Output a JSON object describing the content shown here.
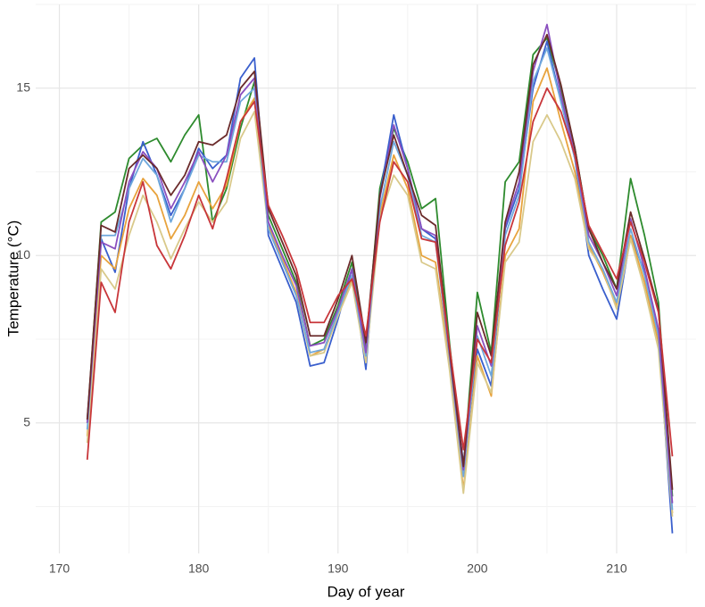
{
  "chart_data": {
    "type": "line",
    "x_label": "Day of year",
    "y_label": "Temperature (°C)",
    "x": [
      172,
      173,
      174,
      175,
      176,
      177,
      178,
      179,
      180,
      181,
      182,
      183,
      184,
      185,
      186,
      187,
      188,
      189,
      190,
      191,
      192,
      193,
      194,
      195,
      196,
      197,
      198,
      199,
      200,
      201,
      202,
      203,
      204,
      205,
      206,
      207,
      208,
      209,
      210,
      211,
      212,
      213,
      214
    ],
    "series": [
      {
        "color": "#2e8b2e",
        "values": [
          5.0,
          11.0,
          11.3,
          12.9,
          13.3,
          13.5,
          12.8,
          13.6,
          14.2,
          11.0,
          12.0,
          13.8,
          15.2,
          11.2,
          10.2,
          9.2,
          7.3,
          7.5,
          8.5,
          9.8,
          7.2,
          12.0,
          13.8,
          12.8,
          11.4,
          11.7,
          7.4,
          3.6,
          8.9,
          7.1,
          12.2,
          12.8,
          16.0,
          16.5,
          15.0,
          13.2,
          10.8,
          10.0,
          9.0,
          12.3,
          10.6,
          8.6,
          2.8
        ]
      },
      {
        "color": "#3a5fcd",
        "values": [
          5.1,
          10.5,
          9.5,
          12.0,
          13.4,
          12.4,
          11.2,
          12.0,
          13.2,
          12.6,
          13.0,
          15.3,
          15.9,
          10.6,
          9.6,
          8.6,
          6.7,
          6.8,
          8.1,
          9.6,
          6.6,
          11.8,
          14.2,
          12.6,
          10.8,
          10.5,
          7.0,
          3.8,
          7.2,
          6.1,
          10.8,
          12.0,
          15.0,
          16.4,
          14.6,
          12.9,
          10.0,
          9.0,
          8.1,
          10.6,
          9.5,
          7.6,
          1.7
        ]
      },
      {
        "color": "#e8a33d",
        "values": [
          4.6,
          10.0,
          9.6,
          11.4,
          12.3,
          11.8,
          10.5,
          11.2,
          12.2,
          11.4,
          12.1,
          14.0,
          14.7,
          10.9,
          9.9,
          8.9,
          7.0,
          7.2,
          8.3,
          9.3,
          6.9,
          11.2,
          13.0,
          12.0,
          10.0,
          9.8,
          6.8,
          3.0,
          7.0,
          5.8,
          10.0,
          10.8,
          14.6,
          15.6,
          14.0,
          12.5,
          10.3,
          9.5,
          8.5,
          10.6,
          9.2,
          7.4,
          2.3
        ]
      },
      {
        "color": "#d9c98a",
        "values": [
          4.4,
          9.6,
          9.0,
          10.6,
          11.8,
          11.0,
          9.9,
          10.8,
          11.6,
          11.0,
          11.6,
          13.5,
          14.3,
          10.8,
          9.8,
          8.8,
          7.0,
          7.1,
          8.2,
          9.2,
          6.8,
          11.1,
          12.4,
          11.8,
          9.8,
          9.6,
          6.6,
          2.9,
          6.8,
          5.9,
          9.8,
          10.4,
          13.4,
          14.2,
          13.4,
          12.3,
          10.2,
          9.6,
          8.4,
          10.5,
          9.0,
          7.2,
          2.2
        ]
      },
      {
        "color": "#6fa8dc",
        "values": [
          4.8,
          10.6,
          10.6,
          12.0,
          12.9,
          12.4,
          11.0,
          12.0,
          13.0,
          12.8,
          12.8,
          14.6,
          15.0,
          10.8,
          9.8,
          8.8,
          7.1,
          7.2,
          8.3,
          9.4,
          7.0,
          11.4,
          13.4,
          12.4,
          10.6,
          10.4,
          7.0,
          3.4,
          7.6,
          6.4,
          10.6,
          11.8,
          15.2,
          16.2,
          14.6,
          12.9,
          10.4,
          9.6,
          8.6,
          10.8,
          9.4,
          7.6,
          2.4
        ]
      },
      {
        "color": "#8a4fbf",
        "values": [
          5.0,
          10.4,
          10.2,
          12.2,
          13.1,
          12.6,
          11.4,
          12.2,
          13.1,
          12.2,
          13.0,
          14.8,
          15.3,
          11.0,
          10.0,
          9.1,
          7.3,
          7.4,
          8.4,
          9.6,
          7.1,
          11.7,
          13.9,
          12.6,
          10.8,
          10.6,
          7.1,
          3.6,
          7.9,
          6.7,
          10.9,
          12.2,
          15.5,
          16.9,
          14.8,
          13.0,
          10.6,
          9.8,
          8.8,
          11.1,
          9.6,
          7.8,
          2.6
        ]
      },
      {
        "color": "#6b2b2b",
        "values": [
          5.1,
          10.9,
          10.7,
          12.6,
          13.0,
          12.6,
          11.8,
          12.4,
          13.4,
          13.3,
          13.6,
          15.0,
          15.5,
          11.4,
          10.4,
          9.4,
          7.6,
          7.6,
          8.7,
          10.0,
          7.4,
          11.8,
          13.6,
          12.4,
          11.2,
          10.9,
          7.2,
          3.7,
          8.3,
          7.0,
          11.0,
          12.5,
          15.7,
          16.6,
          15.1,
          13.2,
          10.8,
          9.8,
          9.0,
          11.3,
          9.9,
          8.4,
          3.0
        ]
      },
      {
        "color": "#c8363a",
        "values": [
          3.9,
          9.2,
          8.3,
          11.0,
          12.2,
          10.3,
          9.6,
          10.6,
          11.8,
          10.8,
          12.3,
          14.0,
          14.6,
          11.5,
          10.6,
          9.6,
          8.0,
          8.0,
          8.8,
          9.3,
          7.6,
          11.0,
          12.8,
          12.2,
          10.5,
          10.4,
          7.3,
          4.2,
          7.5,
          6.8,
          10.3,
          11.6,
          14.0,
          15.0,
          14.3,
          13.0,
          10.9,
          10.1,
          9.3,
          11.0,
          9.8,
          8.3,
          4.0
        ]
      }
    ],
    "xlim": [
      168.3,
      215.7
    ],
    "xticks": [
      170,
      180,
      190,
      200,
      210
    ],
    "x_minor_ticks": [
      175,
      185,
      195,
      205,
      215
    ],
    "ylim": [
      1.1,
      17.5
    ],
    "yticks": [
      5,
      10,
      15
    ],
    "y_minor_ticks": [
      2.5,
      7.5,
      12.5,
      17.5
    ],
    "grid": true
  }
}
